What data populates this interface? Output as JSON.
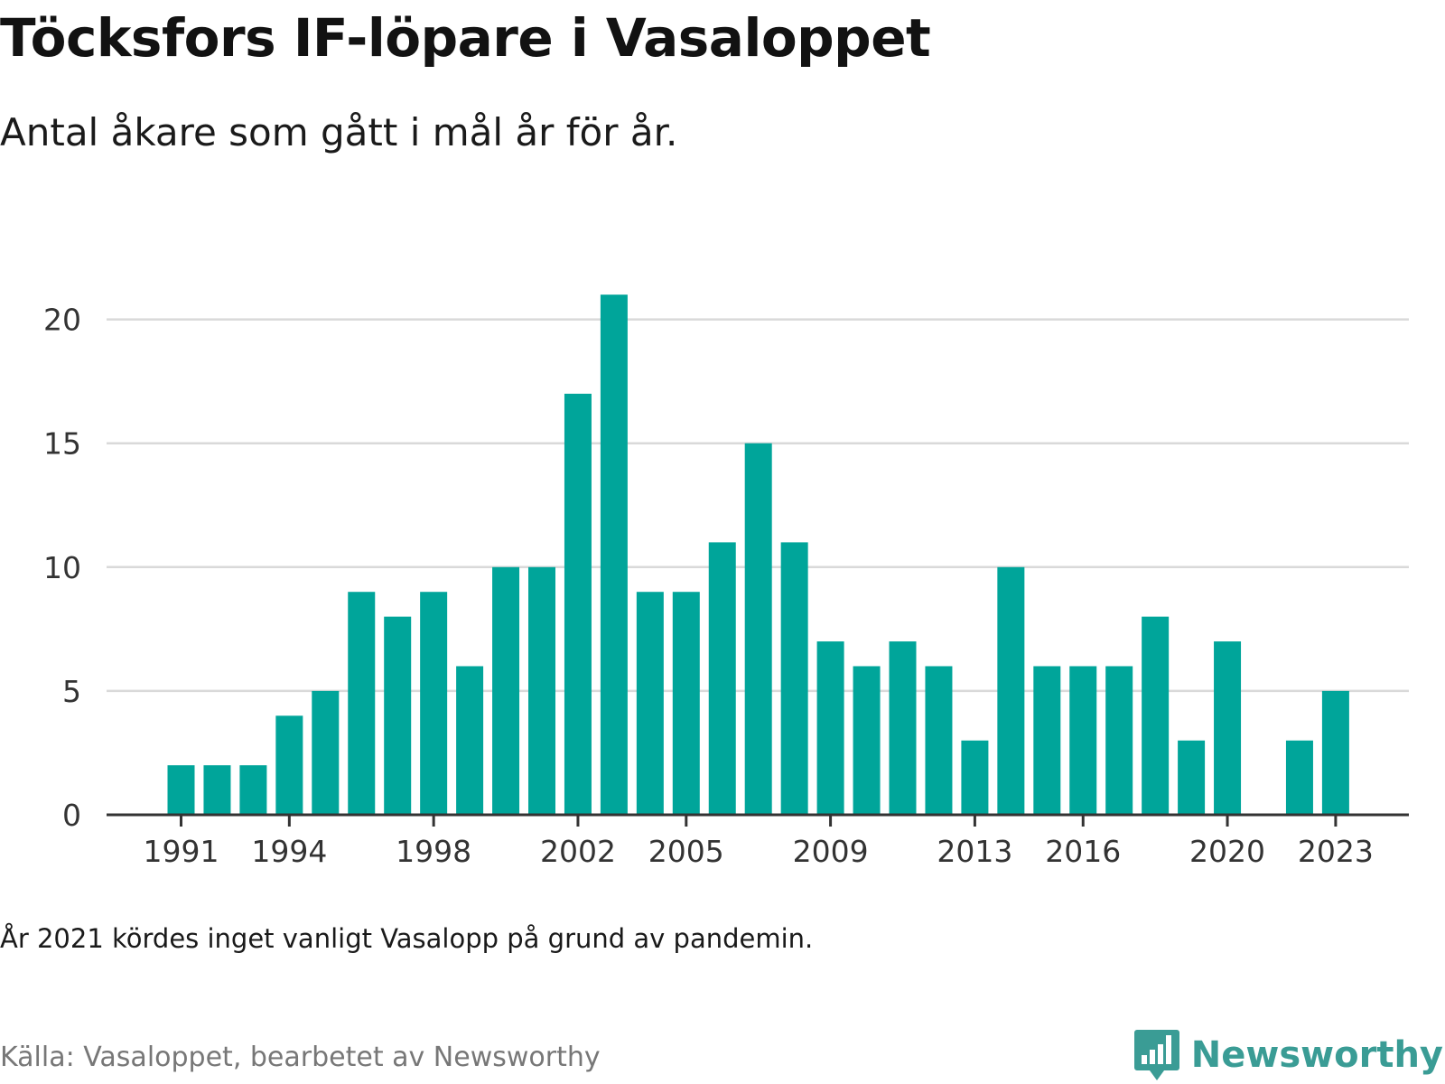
{
  "title": "Töcksfors IF-löpare i Vasaloppet",
  "subtitle": "Antal åkare som gått i mål år för år.",
  "note": "År 2021 kördes inget vanligt Vasalopp på grund av pandemin.",
  "source": "Källa: Vasaloppet, bearbetet av Newsworthy",
  "brand": {
    "name": "Newsworthy",
    "icon": "bar-chart-speech-bubble-icon"
  },
  "colors": {
    "bar": "#00a59a",
    "grid": "#d9d9d9",
    "axis": "#333333",
    "brand": "#3a9c95"
  },
  "chart_data": {
    "type": "bar",
    "title": "Töcksfors IF-löpare i Vasaloppet",
    "subtitle": "Antal åkare som gått i mål år för år.",
    "xlabel": "",
    "ylabel": "",
    "x": [
      1991,
      1992,
      1993,
      1994,
      1995,
      1996,
      1997,
      1998,
      1999,
      2000,
      2001,
      2002,
      2003,
      2004,
      2005,
      2006,
      2007,
      2008,
      2009,
      2010,
      2011,
      2012,
      2013,
      2014,
      2015,
      2016,
      2017,
      2018,
      2019,
      2020,
      2021,
      2022,
      2023
    ],
    "values": [
      2,
      2,
      2,
      4,
      5,
      9,
      8,
      9,
      6,
      10,
      10,
      17,
      21,
      9,
      9,
      11,
      15,
      11,
      7,
      6,
      7,
      6,
      3,
      10,
      6,
      6,
      6,
      8,
      3,
      7,
      null,
      3,
      5
    ],
    "x_tick_labels": [
      "1991",
      "1994",
      "1998",
      "2002",
      "2005",
      "2009",
      "2013",
      "2016",
      "2020",
      "2023"
    ],
    "y_ticks": [
      0,
      5,
      10,
      15,
      20
    ],
    "ylim": [
      0,
      21
    ],
    "grid": true,
    "legend": "none"
  }
}
